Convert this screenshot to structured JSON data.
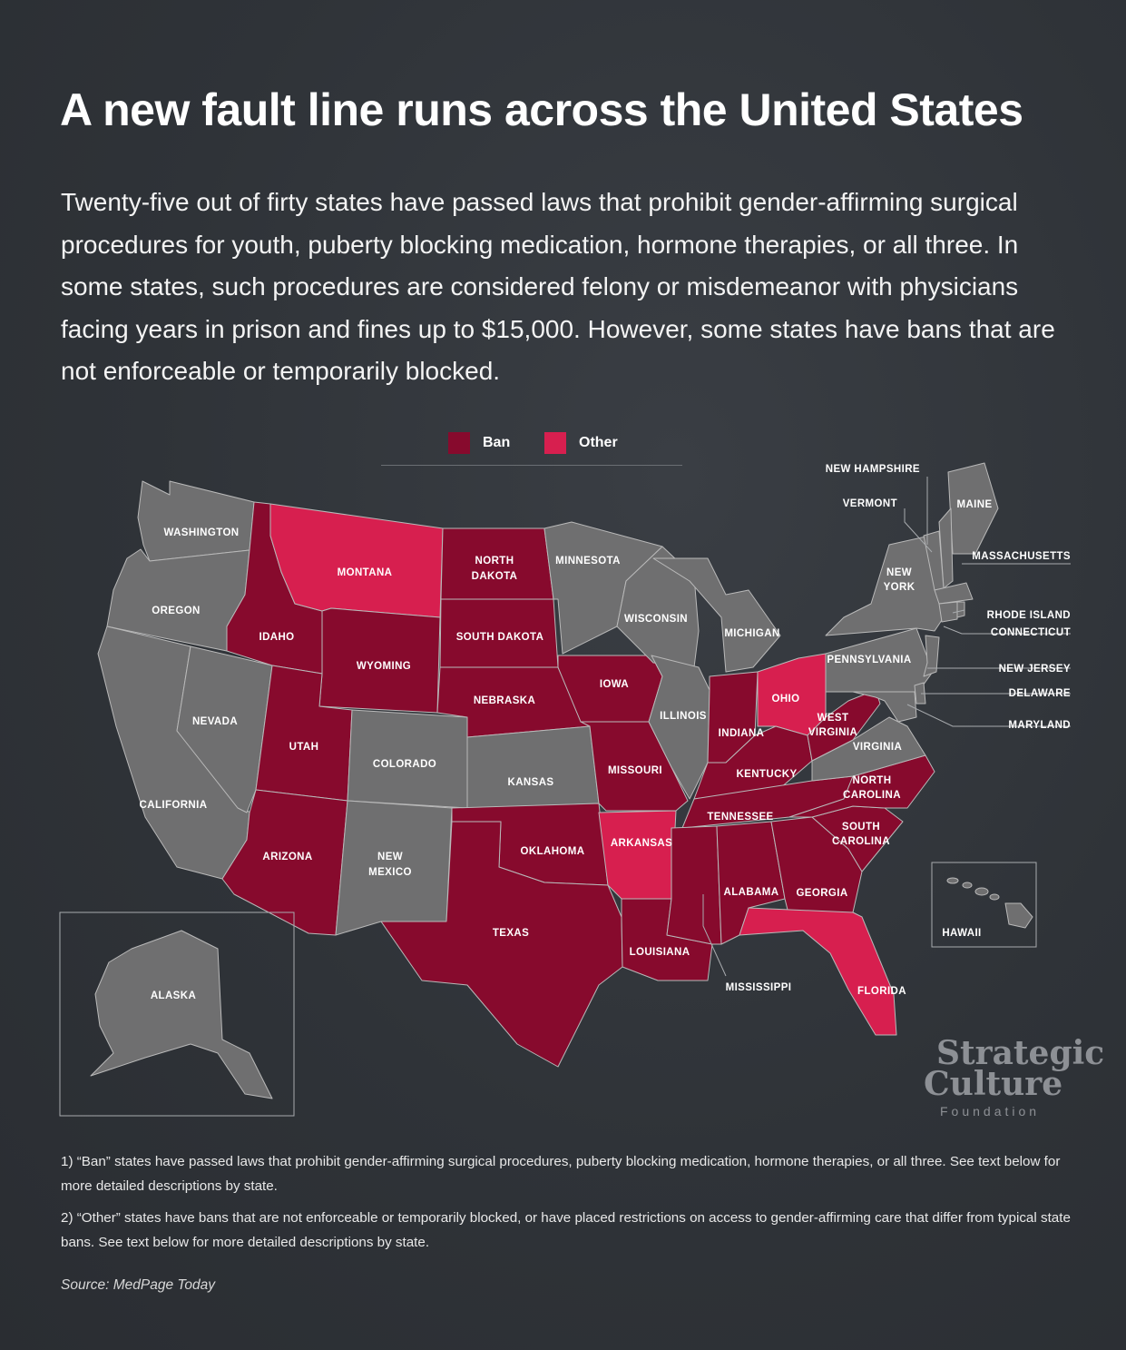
{
  "title": "A new fault line runs across the United States",
  "intro": "Twenty-five out of firty states have passed laws that prohibit gender-affirming surgical procedures for youth, puberty blocking medication, hormone therapies, or all three. In some states, such procedures are considered felony or misdemeanor with physicians facing years in prison and fines up to $15,000. However, some states have bans that are not enforceable or temporarily blocked.",
  "legend": [
    {
      "label": "Ban",
      "color": "#870a2d"
    },
    {
      "label": "Other",
      "color": "#d71f4f"
    }
  ],
  "colors": {
    "ban": "#870a2d",
    "other": "#d71f4f",
    "none": "#6f6f70",
    "background": "#2f3338"
  },
  "states": [
    {
      "name": "WASHINGTON",
      "status": "none"
    },
    {
      "name": "OREGON",
      "status": "none"
    },
    {
      "name": "CALIFORNIA",
      "status": "none"
    },
    {
      "name": "NEVADA",
      "status": "none"
    },
    {
      "name": "IDAHO",
      "status": "ban"
    },
    {
      "name": "MONTANA",
      "status": "other"
    },
    {
      "name": "WYOMING",
      "status": "ban"
    },
    {
      "name": "UTAH",
      "status": "ban"
    },
    {
      "name": "ARIZONA",
      "status": "ban"
    },
    {
      "name": "COLORADO",
      "status": "none"
    },
    {
      "name": "NEW MEXICO",
      "status": "none"
    },
    {
      "name": "NORTH DAKOTA",
      "status": "ban"
    },
    {
      "name": "SOUTH DAKOTA",
      "status": "ban"
    },
    {
      "name": "NEBRASKA",
      "status": "ban"
    },
    {
      "name": "KANSAS",
      "status": "none"
    },
    {
      "name": "OKLAHOMA",
      "status": "ban"
    },
    {
      "name": "TEXAS",
      "status": "ban"
    },
    {
      "name": "MINNESOTA",
      "status": "none"
    },
    {
      "name": "IOWA",
      "status": "ban"
    },
    {
      "name": "MISSOURI",
      "status": "ban"
    },
    {
      "name": "ARKANSAS",
      "status": "other"
    },
    {
      "name": "LOUISIANA",
      "status": "ban"
    },
    {
      "name": "WISCONSIN",
      "status": "none"
    },
    {
      "name": "ILLINOIS",
      "status": "none"
    },
    {
      "name": "MICHIGAN",
      "status": "none"
    },
    {
      "name": "INDIANA",
      "status": "ban"
    },
    {
      "name": "OHIO",
      "status": "other"
    },
    {
      "name": "KENTUCKY",
      "status": "ban"
    },
    {
      "name": "TENNESSEE",
      "status": "ban"
    },
    {
      "name": "MISSISSIPPI",
      "status": "ban"
    },
    {
      "name": "ALABAMA",
      "status": "ban"
    },
    {
      "name": "GEORGIA",
      "status": "ban"
    },
    {
      "name": "FLORIDA",
      "status": "other"
    },
    {
      "name": "SOUTH CAROLINA",
      "status": "ban"
    },
    {
      "name": "NORTH CAROLINA",
      "status": "ban"
    },
    {
      "name": "VIRGINIA",
      "status": "none"
    },
    {
      "name": "WEST VIRGINIA",
      "status": "ban"
    },
    {
      "name": "PENNSYLVANIA",
      "status": "none"
    },
    {
      "name": "NEW YORK",
      "status": "none"
    },
    {
      "name": "MAINE",
      "status": "none"
    },
    {
      "name": "NEW HAMPSHIRE",
      "status": "none"
    },
    {
      "name": "VERMONT",
      "status": "none"
    },
    {
      "name": "MASSACHUSETTS",
      "status": "none"
    },
    {
      "name": "RHODE ISLAND",
      "status": "none"
    },
    {
      "name": "CONNECTICUT",
      "status": "none"
    },
    {
      "name": "NEW JERSEY",
      "status": "none"
    },
    {
      "name": "DELAWARE",
      "status": "none"
    },
    {
      "name": "MARYLAND",
      "status": "none"
    },
    {
      "name": "ALASKA",
      "status": "none"
    },
    {
      "name": "HAWAII",
      "status": "none"
    }
  ],
  "notes": [
    "1) “Ban” states have passed laws that prohibit gender-affirming surgical procedures, puberty blocking medication, hormone therapies, or all three. See text below for more detailed descriptions by state.",
    "2) “Other” states have bans that are not enforceable or temporarily blocked, or have placed restrictions on access to gender-affirming care that differ from typical state bans. See text below for more detailed descriptions by state."
  ],
  "source": "Source: MedPage Today",
  "brand": {
    "line1": "Strategic",
    "line2": "Culture",
    "line3": "Foundation"
  }
}
